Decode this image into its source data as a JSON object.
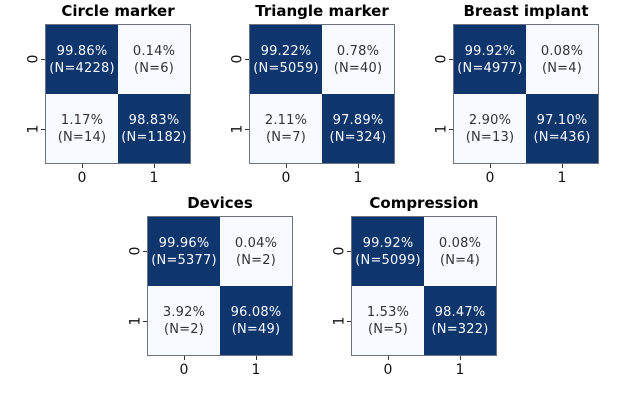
{
  "colors": {
    "dark_cell": "#0f356d",
    "light_cell": "#f7fbff",
    "dark_cell_text": "#f7fbff",
    "light_cell_text": "#333333",
    "title_text": "#000000",
    "tick_text": "#111111"
  },
  "layout": {
    "arrangement": "3 confusion matrices on top row, 2 centered on bottom row",
    "grid_lines": "off",
    "legend": "none"
  },
  "chart_data": [
    {
      "type": "heatmap",
      "title": "Circle marker",
      "x_tick_labels": [
        "0",
        "1"
      ],
      "y_tick_labels": [
        "0",
        "1"
      ],
      "percent": [
        [
          99.86,
          0.14
        ],
        [
          1.17,
          98.83
        ]
      ],
      "counts": [
        [
          4228,
          6
        ],
        [
          14,
          1182
        ]
      ],
      "cells": [
        {
          "percent_label": "99.86%",
          "count_label": "(N=4228)",
          "dark": true
        },
        {
          "percent_label": "0.14%",
          "count_label": "(N=6)",
          "dark": false
        },
        {
          "percent_label": "1.17%",
          "count_label": "(N=14)",
          "dark": false
        },
        {
          "percent_label": "98.83%",
          "count_label": "(N=1182)",
          "dark": true
        }
      ]
    },
    {
      "type": "heatmap",
      "title": "Triangle marker",
      "x_tick_labels": [
        "0",
        "1"
      ],
      "y_tick_labels": [
        "0",
        "1"
      ],
      "percent": [
        [
          99.22,
          0.78
        ],
        [
          2.11,
          97.89
        ]
      ],
      "counts": [
        [
          5059,
          40
        ],
        [
          7,
          324
        ]
      ],
      "cells": [
        {
          "percent_label": "99.22%",
          "count_label": "(N=5059)",
          "dark": true
        },
        {
          "percent_label": "0.78%",
          "count_label": "(N=40)",
          "dark": false
        },
        {
          "percent_label": "2.11%",
          "count_label": "(N=7)",
          "dark": false
        },
        {
          "percent_label": "97.89%",
          "count_label": "(N=324)",
          "dark": true
        }
      ]
    },
    {
      "type": "heatmap",
      "title": "Breast implant",
      "x_tick_labels": [
        "0",
        "1"
      ],
      "y_tick_labels": [
        "0",
        "1"
      ],
      "percent": [
        [
          99.92,
          0.08
        ],
        [
          2.9,
          97.1
        ]
      ],
      "counts": [
        [
          4977,
          4
        ],
        [
          13,
          436
        ]
      ],
      "cells": [
        {
          "percent_label": "99.92%",
          "count_label": "(N=4977)",
          "dark": true
        },
        {
          "percent_label": "0.08%",
          "count_label": "(N=4)",
          "dark": false
        },
        {
          "percent_label": "2.90%",
          "count_label": "(N=13)",
          "dark": false
        },
        {
          "percent_label": "97.10%",
          "count_label": "(N=436)",
          "dark": true
        }
      ]
    },
    {
      "type": "heatmap",
      "title": "Devices",
      "x_tick_labels": [
        "0",
        "1"
      ],
      "y_tick_labels": [
        "0",
        "1"
      ],
      "percent": [
        [
          99.96,
          0.04
        ],
        [
          3.92,
          96.08
        ]
      ],
      "counts": [
        [
          5377,
          2
        ],
        [
          2,
          49
        ]
      ],
      "cells": [
        {
          "percent_label": "99.96%",
          "count_label": "(N=5377)",
          "dark": true
        },
        {
          "percent_label": "0.04%",
          "count_label": "(N=2)",
          "dark": false
        },
        {
          "percent_label": "3.92%",
          "count_label": "(N=2)",
          "dark": false
        },
        {
          "percent_label": "96.08%",
          "count_label": "(N=49)",
          "dark": true
        }
      ]
    },
    {
      "type": "heatmap",
      "title": "Compression",
      "x_tick_labels": [
        "0",
        "1"
      ],
      "y_tick_labels": [
        "0",
        "1"
      ],
      "percent": [
        [
          99.92,
          0.08
        ],
        [
          1.53,
          98.47
        ]
      ],
      "counts": [
        [
          5099,
          4
        ],
        [
          5,
          322
        ]
      ],
      "cells": [
        {
          "percent_label": "99.92%",
          "count_label": "(N=5099)",
          "dark": true
        },
        {
          "percent_label": "0.08%",
          "count_label": "(N=4)",
          "dark": false
        },
        {
          "percent_label": "1.53%",
          "count_label": "(N=5)",
          "dark": false
        },
        {
          "percent_label": "98.47%",
          "count_label": "(N=322)",
          "dark": true
        }
      ]
    }
  ]
}
